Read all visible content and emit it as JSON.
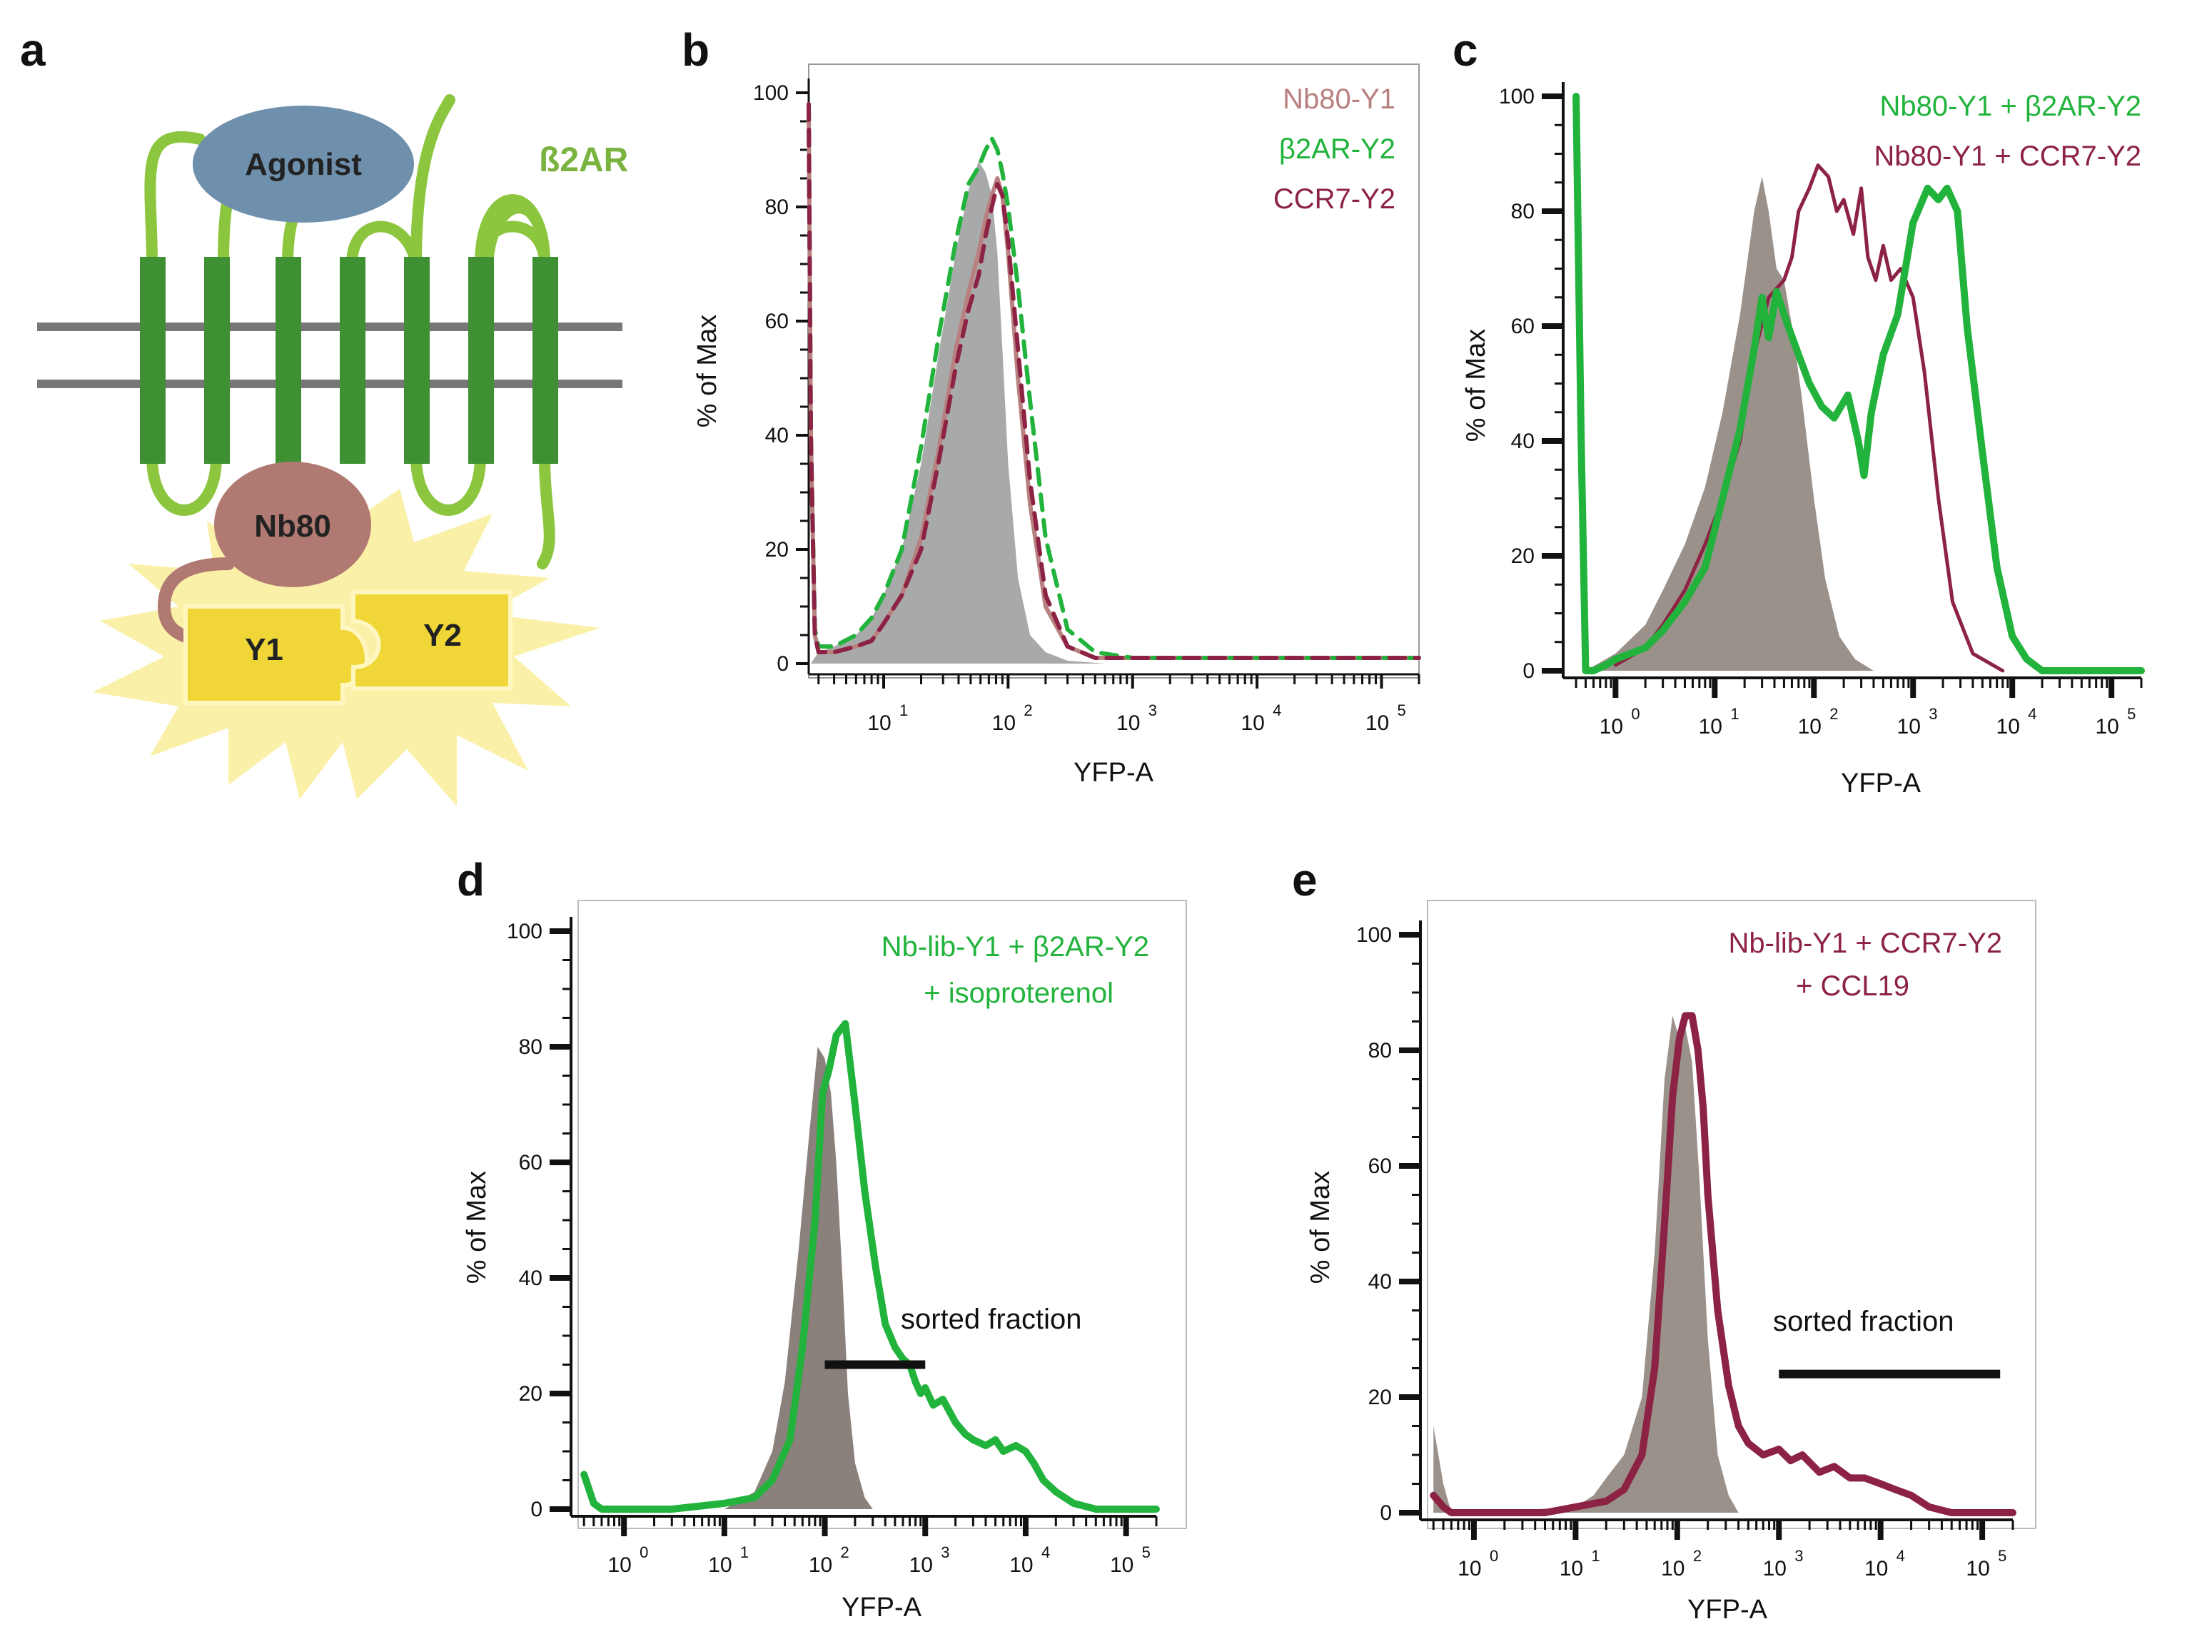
{
  "colors": {
    "green": "#22b33c",
    "green_dark": "#3a8a2e",
    "green_light": "#8cc63f",
    "maroon": "#8c2344",
    "rose": "#b98080",
    "gray_fill": "#a8aaaa",
    "taupe_fill": "#9b918b",
    "dark_fill": "#8a807c",
    "agonist_blue": "#6e90ad",
    "nb80_fill": "#b07a72",
    "yellow": "#f0d636",
    "burst": "#faf0a8"
  },
  "panel_a": {
    "label": "a",
    "agonist": "Agonist",
    "receptor": "ß2AR",
    "nanobody": "Nb80",
    "y1": "Y1",
    "y2": "Y2"
  },
  "chart_data": [
    {
      "panel": "b",
      "type": "line",
      "xlabel": "YFP-A",
      "ylabel": "% of Max",
      "xscale": "log",
      "xlim": [
        2.5,
        200000
      ],
      "ylim": [
        0,
        100
      ],
      "y_ticks": [
        "0",
        "20",
        "40",
        "60",
        "80",
        "100"
      ],
      "x_ticks": [
        {
          "base": "10",
          "exp": "1",
          "value": 10
        },
        {
          "base": "10",
          "exp": "2",
          "value": 100
        },
        {
          "base": "10",
          "exp": "3",
          "value": 1000
        },
        {
          "base": "10",
          "exp": "4",
          "value": 10000
        },
        {
          "base": "10",
          "exp": "5",
          "value": 100000
        }
      ],
      "legend": [
        "Nb80-Y1",
        "β2AR-Y2",
        "CCR7-Y2"
      ],
      "series": [
        {
          "name": "control (filled)",
          "style": "filled",
          "color": "#a8aaaa",
          "x": [
            2.6,
            3,
            4,
            6,
            8,
            10,
            14,
            20,
            28,
            38,
            48,
            58,
            66,
            74,
            82,
            90,
            100,
            120,
            150,
            200,
            300,
            600
          ],
          "y": [
            0,
            2,
            3,
            5,
            8,
            12,
            20,
            35,
            55,
            72,
            83,
            88,
            86,
            82,
            72,
            55,
            35,
            15,
            5,
            2,
            0.5,
            0
          ]
        },
        {
          "name": "Nb80-Y1",
          "style": "solid",
          "color": "#b98080",
          "x": [
            2.5,
            2.6,
            2.8,
            3,
            4,
            6,
            8,
            10,
            14,
            20,
            28,
            38,
            48,
            58,
            66,
            74,
            82,
            90,
            100,
            120,
            150,
            200,
            300,
            500,
            1000,
            10000,
            200000
          ],
          "y": [
            98,
            40,
            5,
            2,
            2,
            3,
            4,
            7,
            12,
            22,
            38,
            55,
            65,
            72,
            78,
            82,
            85,
            82,
            72,
            50,
            28,
            10,
            3,
            1,
            1,
            1,
            1
          ]
        },
        {
          "name": "β2AR-Y2",
          "style": "dashed",
          "color": "#22b33c",
          "x": [
            2.5,
            2.6,
            2.8,
            3,
            4,
            6,
            8,
            10,
            14,
            20,
            28,
            38,
            48,
            58,
            66,
            74,
            82,
            90,
            100,
            120,
            150,
            200,
            300,
            500,
            1000,
            10000,
            200000
          ],
          "y": [
            98,
            40,
            6,
            3,
            3,
            5,
            8,
            12,
            20,
            38,
            58,
            74,
            84,
            87,
            90,
            92,
            90,
            86,
            80,
            66,
            46,
            22,
            6,
            2,
            1,
            1,
            1
          ]
        },
        {
          "name": "CCR7-Y2",
          "style": "dashed",
          "color": "#8c2344",
          "x": [
            2.5,
            2.6,
            2.8,
            3,
            4,
            6,
            8,
            10,
            14,
            20,
            28,
            38,
            48,
            58,
            66,
            74,
            82,
            90,
            100,
            120,
            150,
            200,
            300,
            500,
            1000,
            10000,
            200000
          ],
          "y": [
            98,
            40,
            5,
            2,
            2,
            3,
            4,
            7,
            12,
            20,
            36,
            52,
            62,
            68,
            75,
            80,
            84,
            82,
            74,
            55,
            32,
            12,
            3,
            1,
            1,
            1,
            1
          ]
        }
      ]
    },
    {
      "panel": "c",
      "type": "line",
      "xlabel": "YFP-A",
      "ylabel": "% of Max",
      "xscale": "log",
      "xlim": [
        0.35,
        200000
      ],
      "ylim": [
        0,
        100
      ],
      "y_ticks": [
        "0",
        "20",
        "40",
        "60",
        "80",
        "100"
      ],
      "x_ticks": [
        {
          "base": "10",
          "exp": "0",
          "value": 1
        },
        {
          "base": "10",
          "exp": "1",
          "value": 10
        },
        {
          "base": "10",
          "exp": "2",
          "value": 100
        },
        {
          "base": "10",
          "exp": "3",
          "value": 1000
        },
        {
          "base": "10",
          "exp": "4",
          "value": 10000
        },
        {
          "base": "10",
          "exp": "5",
          "value": 100000
        }
      ],
      "legend": [
        "Nb80-Y1 + β2AR-Y2",
        "Nb80-Y1 + CCR7-Y2"
      ],
      "series": [
        {
          "name": "control (filled)",
          "style": "filled",
          "color": "#9b918b",
          "x": [
            0.5,
            1,
            2,
            3,
            5,
            8,
            12,
            18,
            25,
            30,
            35,
            42,
            50,
            60,
            75,
            100,
            130,
            180,
            260,
            400
          ],
          "y": [
            0,
            3,
            8,
            14,
            22,
            32,
            45,
            62,
            80,
            86,
            80,
            70,
            68,
            60,
            48,
            30,
            16,
            6,
            2,
            0
          ]
        },
        {
          "name": "Nb80-Y1 + CCR7-Y2",
          "style": "solid",
          "color": "#8c2344",
          "x": [
            1,
            2,
            3,
            5,
            8,
            12,
            18,
            25,
            35,
            50,
            60,
            70,
            90,
            110,
            140,
            170,
            200,
            250,
            300,
            350,
            420,
            500,
            600,
            750,
            1000,
            1300,
            1800,
            2500,
            4000,
            8000
          ],
          "y": [
            1,
            4,
            8,
            14,
            22,
            30,
            40,
            55,
            65,
            68,
            72,
            80,
            84,
            88,
            86,
            80,
            82,
            76,
            84,
            72,
            68,
            74,
            68,
            70,
            65,
            52,
            30,
            12,
            3,
            0
          ]
        },
        {
          "name": "Nb80-Y1 + β2AR-Y2",
          "style": "solid",
          "color": "#22b33c",
          "x": [
            0.4,
            0.45,
            0.5,
            0.6,
            0.8,
            1,
            2,
            3,
            5,
            8,
            12,
            18,
            25,
            30,
            35,
            42,
            55,
            70,
            90,
            120,
            160,
            220,
            280,
            320,
            380,
            500,
            700,
            1000,
            1400,
            1800,
            2200,
            2800,
            3500,
            5000,
            7000,
            10000,
            14000,
            20000,
            50000,
            200000
          ],
          "y": [
            100,
            40,
            0,
            0,
            1,
            2,
            4,
            7,
            12,
            18,
            30,
            42,
            56,
            65,
            58,
            66,
            60,
            55,
            50,
            46,
            44,
            48,
            40,
            34,
            45,
            55,
            62,
            78,
            84,
            82,
            84,
            80,
            60,
            38,
            18,
            6,
            2,
            0,
            0,
            0
          ]
        }
      ]
    },
    {
      "panel": "d",
      "type": "line",
      "xlabel": "YFP-A",
      "ylabel": "% of Max",
      "xscale": "log",
      "xlim": [
        0.35,
        200000
      ],
      "ylim": [
        0,
        100
      ],
      "y_ticks": [
        "0",
        "20",
        "40",
        "60",
        "80",
        "100"
      ],
      "x_ticks": [
        {
          "base": "10",
          "exp": "0",
          "value": 1
        },
        {
          "base": "10",
          "exp": "1",
          "value": 10
        },
        {
          "base": "10",
          "exp": "2",
          "value": 100
        },
        {
          "base": "10",
          "exp": "3",
          "value": 1000
        },
        {
          "base": "10",
          "exp": "4",
          "value": 10000
        },
        {
          "base": "10",
          "exp": "5",
          "value": 100000
        }
      ],
      "legend": [
        "Nb-lib-Y1 + β2AR-Y2",
        "+ isoproterenol"
      ],
      "annotation": "sorted fraction",
      "sorted_fraction_range": [
        100,
        1000
      ],
      "sorted_fraction_y": 25,
      "series": [
        {
          "name": "control (filled)",
          "style": "filled",
          "color": "#8a807c",
          "x": [
            10,
            20,
            30,
            40,
            55,
            70,
            85,
            100,
            115,
            130,
            150,
            170,
            200,
            250,
            300
          ],
          "y": [
            0,
            3,
            10,
            22,
            45,
            65,
            80,
            78,
            72,
            60,
            40,
            20,
            8,
            2,
            0
          ]
        },
        {
          "name": "Nb-lib-Y1 + β2AR-Y2 + isoproterenol",
          "style": "solid",
          "color": "#22b33c",
          "x": [
            0.4,
            0.5,
            0.6,
            1,
            3,
            10,
            20,
            30,
            45,
            60,
            80,
            95,
            110,
            130,
            160,
            200,
            250,
            320,
            400,
            500,
            600,
            700,
            800,
            900,
            1000,
            1200,
            1500,
            2000,
            2500,
            3000,
            4000,
            5000,
            6000,
            8000,
            10000,
            12000,
            15000,
            20000,
            30000,
            50000,
            80000,
            120000,
            200000
          ],
          "y": [
            6,
            1,
            0,
            0,
            0,
            1,
            2,
            5,
            12,
            28,
            50,
            72,
            76,
            82,
            84,
            70,
            55,
            42,
            32,
            28,
            26,
            25,
            22,
            20,
            21,
            18,
            19,
            15,
            13,
            12,
            11,
            12,
            10,
            11,
            10,
            8,
            5,
            3,
            1,
            0,
            0,
            0,
            0
          ]
        }
      ]
    },
    {
      "panel": "e",
      "type": "line",
      "xlabel": "YFP-A",
      "ylabel": "% of Max",
      "xscale": "log",
      "xlim": [
        0.35,
        200000
      ],
      "ylim": [
        0,
        100
      ],
      "y_ticks": [
        "0",
        "20",
        "40",
        "60",
        "80",
        "100"
      ],
      "x_ticks": [
        {
          "base": "10",
          "exp": "0",
          "value": 1
        },
        {
          "base": "10",
          "exp": "1",
          "value": 10
        },
        {
          "base": "10",
          "exp": "2",
          "value": 100
        },
        {
          "base": "10",
          "exp": "3",
          "value": 1000
        },
        {
          "base": "10",
          "exp": "4",
          "value": 10000
        },
        {
          "base": "10",
          "exp": "5",
          "value": 100000
        }
      ],
      "legend": [
        "Nb-lib-Y1 + CCR7-Y2",
        "+ CCL19"
      ],
      "annotation": "sorted fraction",
      "sorted_fraction_range": [
        1000,
        150000
      ],
      "sorted_fraction_y": 24,
      "series": [
        {
          "name": "control (filled)",
          "style": "filled",
          "color": "#9b918b",
          "x": [
            0.4,
            0.5,
            0.6,
            1,
            10,
            15,
            20,
            30,
            45,
            60,
            75,
            90,
            105,
            120,
            140,
            165,
            200,
            250,
            320,
            400
          ],
          "y": [
            15,
            5,
            0,
            0,
            1,
            3,
            6,
            10,
            20,
            45,
            75,
            86,
            82,
            84,
            78,
            58,
            30,
            10,
            3,
            0
          ]
        },
        {
          "name": "Nb-lib-Y1 + CCR7-Y2 + CCL19",
          "style": "solid",
          "color": "#8c2344",
          "x": [
            0.4,
            0.5,
            0.6,
            1,
            5,
            10,
            20,
            30,
            45,
            60,
            75,
            90,
            105,
            120,
            140,
            160,
            180,
            200,
            250,
            320,
            400,
            500,
            700,
            1000,
            1300,
            1700,
            2500,
            3500,
            5000,
            7000,
            10000,
            14000,
            20000,
            30000,
            50000,
            80000,
            120000,
            200000
          ],
          "y": [
            3,
            1,
            0,
            0,
            0,
            1,
            2,
            4,
            10,
            25,
            50,
            72,
            82,
            86,
            86,
            80,
            70,
            55,
            35,
            22,
            15,
            12,
            10,
            11,
            9,
            10,
            7,
            8,
            6,
            6,
            5,
            4,
            3,
            1,
            0,
            0,
            0,
            0
          ]
        }
      ]
    }
  ]
}
